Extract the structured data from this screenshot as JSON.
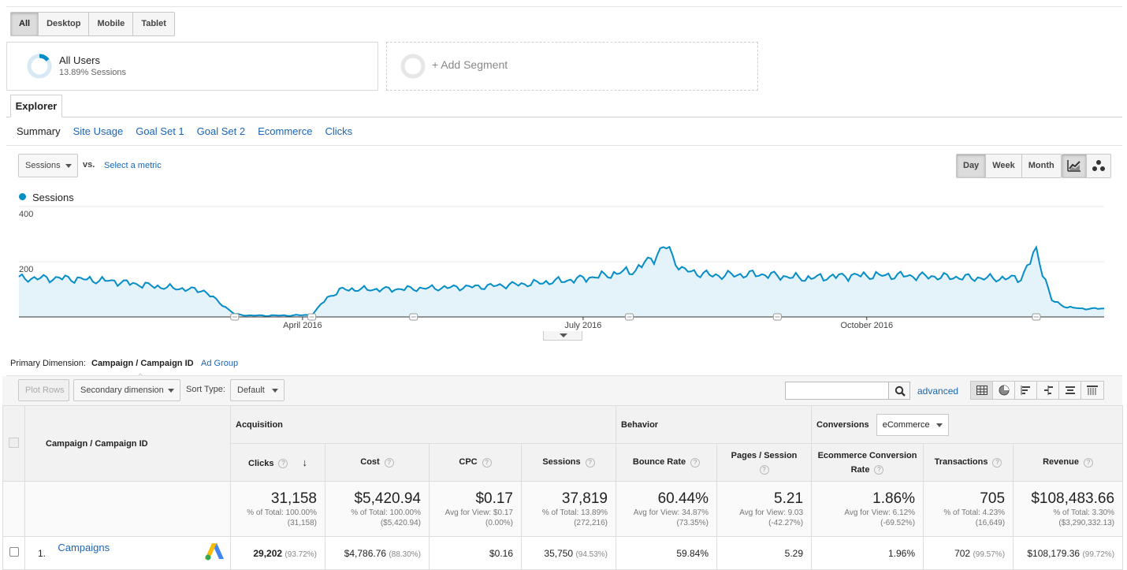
{
  "device_filters": [
    "All",
    "Desktop",
    "Mobile",
    "Tablet"
  ],
  "device_active": "All",
  "segment": {
    "name": "All Users",
    "detail": "13.89% Sessions",
    "add_label": "+ Add Segment"
  },
  "explorer_tab": "Explorer",
  "sub_tabs": [
    "Summary",
    "Site Usage",
    "Goal Set 1",
    "Goal Set 2",
    "Ecommerce",
    "Clicks"
  ],
  "metric_select": "Sessions",
  "vs_label": "vs.",
  "select_metric_link": "Select a metric",
  "time_buttons": [
    "Day",
    "Week",
    "Month"
  ],
  "time_active": "Day",
  "chart_data": {
    "type": "area",
    "legend": "Sessions",
    "color": "#058dc7",
    "fill": "#e4f2f9",
    "y_ticks": [
      "400",
      "200"
    ],
    "ylim": [
      0,
      400
    ],
    "x_labels": [
      "April 2016",
      "July 2016",
      "October 2016"
    ],
    "x_label_days": [
      92,
      183,
      275
    ],
    "grid": true,
    "x_days": [
      1,
      15,
      30,
      45,
      60,
      70,
      75,
      85,
      95,
      100,
      105,
      120,
      135,
      150,
      165,
      180,
      190,
      200,
      205,
      210,
      215,
      225,
      240,
      255,
      270,
      285,
      300,
      315,
      325,
      330,
      335,
      340,
      345,
      350
    ],
    "values": [
      140,
      140,
      130,
      110,
      95,
      10,
      5,
      5,
      7,
      70,
      100,
      100,
      105,
      110,
      120,
      135,
      150,
      170,
      210,
      255,
      170,
      150,
      155,
      140,
      150,
      150,
      145,
      140,
      140,
      240,
      60,
      35,
      30,
      30
    ]
  },
  "chart_annotations_days": [
    70,
    95,
    128,
    198,
    246,
    330
  ],
  "primary_dimension": {
    "label": "Primary Dimension:",
    "current": "Campaign / Campaign ID",
    "other": "Ad Group"
  },
  "toolbar": {
    "plot_rows": "Plot Rows",
    "secondary_dimension": "Secondary dimension",
    "sort_type_label": "Sort Type:",
    "sort_type_value": "Default",
    "search_placeholder": "",
    "advanced": "advanced"
  },
  "table": {
    "dim_header": "Campaign / Campaign ID",
    "groups": {
      "acquisition": "Acquisition",
      "behavior": "Behavior",
      "conversions": "Conversions",
      "conversions_select": "eCommerce"
    },
    "columns": [
      "Clicks",
      "Cost",
      "CPC",
      "Sessions",
      "Bounce Rate",
      "Pages / Session",
      "Ecommerce Conversion Rate",
      "Transactions",
      "Revenue"
    ],
    "totals": [
      {
        "value": "31,158",
        "line1": "% of Total: 100.00%",
        "line2": "(31,158)"
      },
      {
        "value": "$5,420.94",
        "line1": "% of Total: 100.00%",
        "line2": "($5,420.94)"
      },
      {
        "value": "$0.17",
        "line1": "Avg for View: $0.17",
        "line2": "(0.00%)"
      },
      {
        "value": "37,819",
        "line1": "% of Total: 13.89%",
        "line2": "(272,216)"
      },
      {
        "value": "60.44%",
        "line1": "Avg for View: 34.87%",
        "line2": "(73.35%)"
      },
      {
        "value": "5.21",
        "line1": "Avg for View: 9.03",
        "line2": "(-42.27%)"
      },
      {
        "value": "1.86%",
        "line1": "Avg for View: 6.12%",
        "line2": "(-69.52%)"
      },
      {
        "value": "705",
        "line1": "% of Total: 4.23%",
        "line2": "(16,649)"
      },
      {
        "value": "$108,483.66",
        "line1": "% of Total: 3.30%",
        "line2": "($3,290,332.13)"
      }
    ],
    "rows": [
      {
        "index": "1.",
        "name": "Campaigns",
        "clicks": "29,202",
        "clicks_pct": "(93.72%)",
        "cost": "$4,786.76",
        "cost_pct": "(88.30%)",
        "cpc": "$0.16",
        "sessions": "35,750",
        "sessions_pct": "(94.53%)",
        "bounce": "59.84%",
        "pages": "5.29",
        "conv": "1.96%",
        "transactions": "702",
        "transactions_pct": "(99.57%)",
        "revenue": "$108,179.36",
        "revenue_pct": "(99.72%)"
      }
    ]
  }
}
